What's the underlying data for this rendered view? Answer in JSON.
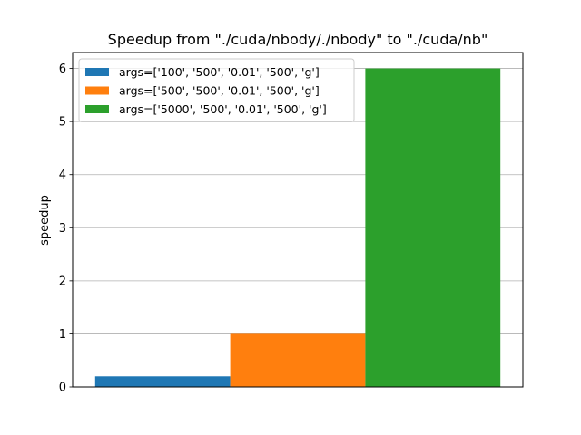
{
  "chart_data": {
    "type": "bar",
    "title": "Speedup from \"./cuda/nbody/./nbody\" to \"./cuda/nb\"",
    "xlabel": "",
    "ylabel": "speedup",
    "ylim": [
      0,
      6.3
    ],
    "yticks": [
      0,
      1,
      2,
      3,
      4,
      5,
      6
    ],
    "grid": "y",
    "legend_position": "top-left",
    "series": [
      {
        "name": "args=['100', '500', '0.01', '500', 'g']",
        "values": [
          0.2
        ],
        "color": "#1f77b4"
      },
      {
        "name": "args=['500', '500', '0.01', '500', 'g']",
        "values": [
          1.0
        ],
        "color": "#ff7f0e"
      },
      {
        "name": "args=['5000', '500', '0.01', '500', 'g']",
        "values": [
          6.0
        ],
        "color": "#2ca02c"
      }
    ]
  }
}
